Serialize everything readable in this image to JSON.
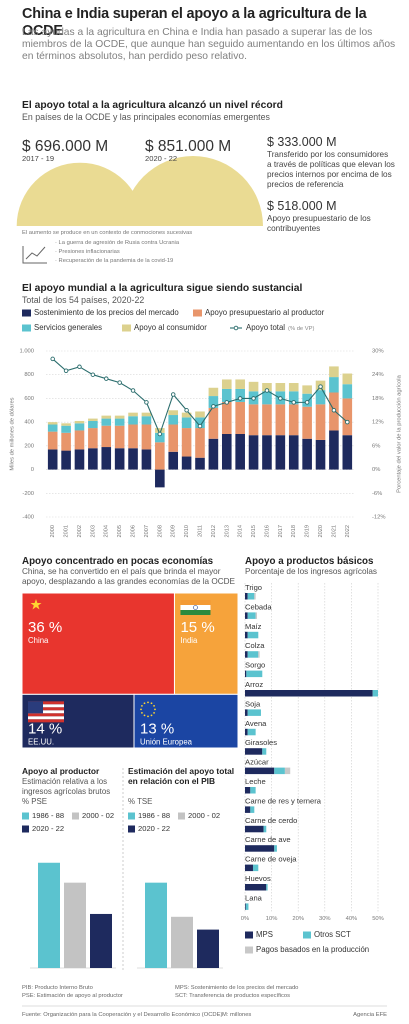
{
  "header": {
    "title": "China e India superan el apoyo a la agricultura de la OCDE",
    "subtitle": "Las ayudas a la agricultura en China e India han pasado a superar las de los miembros de la OCDE, que aunque han seguido aumentando en los últimos años en términos absolutos, han perdido peso relativo."
  },
  "record": {
    "title": "El apoyo total a la agricultura alcanzó un nivel récord",
    "subtitle": "En países de la OCDE y las principales economías emergentes",
    "breakdown": [
      {
        "value_label": "$ 333.000 M",
        "text": "Transferido por los consumidores a través de políticas que elevan los precios internos por encima de los precios de referencia"
      },
      {
        "value_label": "$ 518.000 M",
        "text": "Apoyo presupuestario de los contribuyentes"
      }
    ],
    "note": "El aumento se produce en un contexto de conmociones sucesivas",
    "bullets": [
      "La guerra de agresión de Rusia contra Ucrania",
      "Presiones inflacionarias",
      "Recuperación de la pandemia de la covid-19"
    ]
  },
  "chart_data": [
    {
      "type": "semicircle",
      "categories": [
        "2017 - 19",
        "2020 - 22"
      ],
      "values": [
        696000,
        851000
      ],
      "value_labels": [
        "$ 696.000 M",
        "$ 851.000 M"
      ],
      "color": "#eadb93"
    },
    {
      "type": "bar",
      "stacked": true,
      "title": "El apoyo mundial a la agricultura sigue siendo sustancial",
      "subtitle": "Total de los 54 países, 2020-22",
      "ylabel": "Miles de millones de dólares",
      "y2label": "Porcentaje del valor de la producción agrícola",
      "categories": [
        "2000",
        "2001",
        "2002",
        "2003",
        "2004",
        "2005",
        "2006",
        "2007",
        "2008",
        "2009",
        "2010",
        "2011",
        "2012",
        "2013",
        "2014",
        "2015",
        "2016",
        "2017",
        "2018",
        "2019",
        "2020",
        "2021",
        "2022"
      ],
      "series": [
        {
          "name": "Sostenimiento de los precios del mercado",
          "color": "#1e2a5e",
          "values": [
            170,
            160,
            170,
            180,
            190,
            180,
            180,
            170,
            -150,
            150,
            110,
            100,
            260,
            300,
            300,
            290,
            290,
            290,
            290,
            260,
            250,
            330,
            290
          ]
        },
        {
          "name": "Apoyo presupuestario al productor",
          "color": "#e8956b",
          "values": [
            150,
            150,
            160,
            170,
            180,
            190,
            200,
            210,
            230,
            230,
            240,
            250,
            260,
            270,
            270,
            260,
            260,
            260,
            260,
            270,
            300,
            320,
            310
          ]
        },
        {
          "name": "Servicios generales",
          "color": "#5bc3cf",
          "values": [
            60,
            60,
            60,
            60,
            60,
            60,
            70,
            70,
            80,
            80,
            90,
            90,
            100,
            110,
            110,
            110,
            110,
            110,
            110,
            110,
            120,
            130,
            120
          ]
        },
        {
          "name": "Apoyo al consumidor",
          "color": "#dcd18e",
          "values": [
            20,
            20,
            20,
            20,
            25,
            25,
            30,
            30,
            40,
            40,
            40,
            50,
            70,
            80,
            80,
            80,
            70,
            70,
            70,
            70,
            80,
            90,
            90
          ]
        },
        {
          "name": "Apoyo total",
          "unit": "(% de VP)",
          "type": "line",
          "axis": "y2",
          "color": "#2b6d6d",
          "values": [
            28,
            25,
            26,
            24,
            23,
            22,
            20,
            17,
            9,
            19,
            15,
            11,
            16,
            17,
            18,
            18,
            20,
            18,
            17,
            17,
            21,
            15,
            12
          ]
        }
      ],
      "ylim": [
        -400,
        1000
      ],
      "yticks": [
        -400,
        -200,
        0,
        200,
        400,
        600,
        800,
        {
          "value": 1000,
          "label": "1.000"
        }
      ],
      "y2lim": [
        -12,
        30
      ],
      "y2ticks": [
        {
          "value": -12,
          "label": "-12%"
        },
        {
          "value": -6,
          "label": "-6%"
        },
        {
          "value": 0,
          "label": "0%"
        },
        {
          "value": 6,
          "label": "6%"
        },
        {
          "value": 12,
          "label": "12%"
        },
        {
          "value": 18,
          "label": "18%"
        },
        {
          "value": 24,
          "label": "24%"
        },
        {
          "value": 30,
          "label": "30%"
        }
      ],
      "grid": true
    },
    {
      "type": "treemap",
      "title": "Apoyo concentrado en pocas economías",
      "subtitle": "China, se ha convertido en el país que brinda el mayor apoyo, desplazando a las grandes economías de la OCDE",
      "categories": [
        "China",
        "India",
        "EE.UU.",
        "Unión Europea"
      ],
      "values": [
        36,
        15,
        14,
        13
      ],
      "value_labels": [
        "36 %",
        "15 %",
        "14 %",
        "13 %"
      ],
      "colors": [
        "#e8352e",
        "#f6a33b",
        "#1e2a5e",
        "#1b45a3"
      ]
    },
    {
      "type": "hbar",
      "stacked": true,
      "title": "Apoyo a productos básicos",
      "subtitle": "Porcentaje de los ingresos agrícolas",
      "categories": [
        "Trigo",
        "Cebada",
        "Maíz",
        "Colza",
        "Sorgo",
        "Arroz",
        "Soja",
        "Avena",
        "Girasoles",
        "Azúcar",
        "Leche",
        "Carne de res y ternera",
        "Carne de cerdo",
        "Carne de ave",
        "Carne de oveja",
        "Huevos",
        "Lana"
      ],
      "series": [
        {
          "name": "MPS",
          "color": "#1e2a5e",
          "values": [
            1,
            1,
            1,
            1,
            0.5,
            48,
            1,
            1,
            6.5,
            11,
            2,
            2,
            7,
            11,
            3,
            8,
            0.3
          ]
        },
        {
          "name": "Otros SCT",
          "color": "#5bc3cf",
          "values": [
            2.5,
            3,
            4,
            4,
            6,
            2,
            5,
            3,
            1.5,
            4,
            2,
            1.5,
            1,
            1,
            2,
            0.5,
            1
          ]
        },
        {
          "name": "Pagos basados en la producción",
          "color": "#c8c8c8",
          "values": [
            0.5,
            0.5,
            0,
            0.5,
            0,
            0,
            0,
            0,
            0,
            2,
            0,
            0,
            0,
            0,
            0,
            0,
            0
          ]
        }
      ],
      "xlim": [
        0,
        50
      ],
      "xticks": [
        {
          "value": 0,
          "label": "0%"
        },
        {
          "value": 10,
          "label": "10%"
        },
        {
          "value": 20,
          "label": "20%"
        },
        {
          "value": 30,
          "label": "30%"
        },
        {
          "value": 40,
          "label": "40%"
        },
        {
          "value": 50,
          "label": "50%"
        }
      ]
    },
    {
      "type": "bar",
      "title": "Apoyo al productor",
      "subtitle": "Estimación relativa a los ingresos agrícolas brutos",
      "ylabel": "% PSE",
      "categories": [
        "1986 - 88",
        "2000 - 02",
        "2020 - 22"
      ],
      "values": [
        37,
        30,
        19
      ],
      "colors": [
        "#5bc3cf",
        "#c3c3c3",
        "#1e2a5e"
      ],
      "ylim": [
        0,
        45
      ]
    },
    {
      "type": "bar",
      "title": "Estimación del apoyo total en relación con el PIB",
      "ylabel": "% TSE",
      "categories": [
        "1986 - 88",
        "2000 - 02",
        "2020 - 22"
      ],
      "values": [
        2.0,
        1.2,
        0.9
      ],
      "colors": [
        "#5bc3cf",
        "#c3c3c3",
        "#1e2a5e"
      ],
      "ylim": [
        0,
        3
      ]
    }
  ],
  "footer": {
    "abbreviations": [
      "PIB: Producto Interno Bruto",
      "PSE: Estimación de apoyo al productor",
      "MPS: Sostenimiento de los precios del mercado",
      "SCT: Transferencia de productos específicos"
    ],
    "source": "Fuente: Organización para la Cooperación y el Desarrollo Económico (OCDE)",
    "unit_note": "M: millones",
    "credit": "Agencia EFE"
  }
}
